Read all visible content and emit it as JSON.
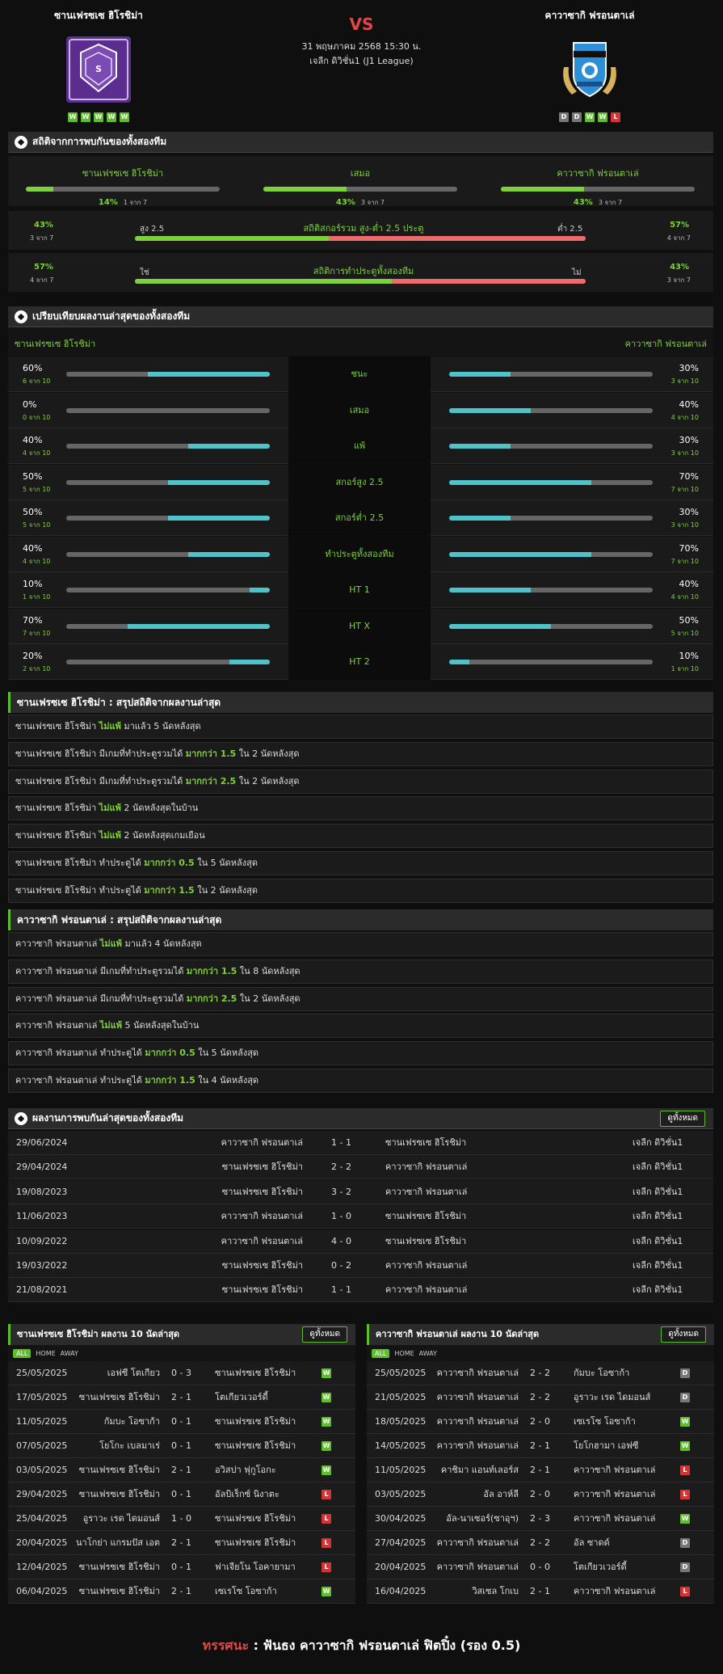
{
  "match": {
    "home": "ซานเฟรซเซ ฮิโรชิม่า",
    "away": "คาวาซากิ ฟรอนตาเล่",
    "vs": "VS",
    "date": "31 พฤษภาคม 2568 15:30 น.",
    "league": "เจลีก ดิวิชั่น1 (J1 League)",
    "home_form": [
      "W",
      "W",
      "W",
      "W",
      "W"
    ],
    "away_form": [
      "D",
      "D",
      "W",
      "W",
      "L"
    ],
    "colors": {
      "home_crest": "#5b2d8e",
      "away_crest": "#2d8fd5",
      "accent": "#7fd13b",
      "win": "#5cbf2a",
      "draw": "#777777",
      "loss": "#d83333"
    },
    "icons": {
      "home_crest": "sanfrecce-crest-icon",
      "away_crest": "frontale-crest-icon"
    }
  },
  "h2h_stats": {
    "title": "สถิติจากการพบกันของทั้งสองทีม",
    "items": [
      {
        "label": "ซานเฟรซเซ ฮิโรชิม่า",
        "pct": "14%",
        "of": "1 จาก 7",
        "fill": 0.14
      },
      {
        "label": "เสมอ",
        "pct": "43%",
        "of": "3 จาก 7",
        "fill": 0.43
      },
      {
        "label": "คาวาซากิ ฟรอนตาเล่",
        "pct": "43%",
        "of": "3 จาก 7",
        "fill": 0.43
      }
    ],
    "ou": {
      "label": "สถิติสกอร์รวม สูง-ต่ำ 2.5 ประตู",
      "left_pct": "43%",
      "left_of": "3 จาก 7",
      "left_word": "สูง 2.5",
      "right_word": "ต่ำ 2.5",
      "right_pct": "57%",
      "right_of": "4 จาก 7",
      "fill": 0.43
    },
    "btts": {
      "label": "สถิติการทำประตูทั้งสองทีม",
      "left_pct": "57%",
      "left_of": "4 จาก 7",
      "left_word": "ใช่",
      "right_word": "ไม่",
      "right_pct": "43%",
      "right_of": "3 จาก 7",
      "fill": 0.57
    }
  },
  "compare": {
    "title": "เปรียบเทียบผลงานล่าสุดของทั้งสองทีม",
    "home": "ซานเฟรซเซ ฮิโรชิม่า",
    "away": "คาวาซากิ ฟรอนตาเล่",
    "rows": [
      {
        "label": "ชนะ",
        "lp": "60%",
        "lo": "6 จาก 10",
        "lf": 0.6,
        "rp": "30%",
        "ro": "3 จาก 10",
        "rf": 0.3
      },
      {
        "label": "เสมอ",
        "lp": "0%",
        "lo": "0 จาก 10",
        "lf": 0,
        "rp": "40%",
        "ro": "4 จาก 10",
        "rf": 0.4
      },
      {
        "label": "แพ้",
        "lp": "40%",
        "lo": "4 จาก 10",
        "lf": 0.4,
        "rp": "30%",
        "ro": "3 จาก 10",
        "rf": 0.3
      },
      {
        "label": "สกอร์สูง 2.5",
        "lp": "50%",
        "lo": "5 จาก 10",
        "lf": 0.5,
        "rp": "70%",
        "ro": "7 จาก 10",
        "rf": 0.7
      },
      {
        "label": "สกอร์ต่ำ 2.5",
        "lp": "50%",
        "lo": "5 จาก 10",
        "lf": 0.5,
        "rp": "30%",
        "ro": "3 จาก 10",
        "rf": 0.3
      },
      {
        "label": "ทำประตูทั้งสองทีม",
        "lp": "40%",
        "lo": "4 จาก 10",
        "lf": 0.4,
        "rp": "70%",
        "ro": "7 จาก 10",
        "rf": 0.7
      },
      {
        "label": "HT 1",
        "lp": "10%",
        "lo": "1 จาก 10",
        "lf": 0.1,
        "rp": "40%",
        "ro": "4 จาก 10",
        "rf": 0.4
      },
      {
        "label": "HT X",
        "lp": "70%",
        "lo": "7 จาก 10",
        "lf": 0.7,
        "rp": "50%",
        "ro": "5 จาก 10",
        "rf": 0.5
      },
      {
        "label": "HT 2",
        "lp": "20%",
        "lo": "2 จาก 10",
        "lf": 0.2,
        "rp": "10%",
        "ro": "1 จาก 10",
        "rf": 0.1
      }
    ]
  },
  "home_summary": {
    "title": "ซานเฟรซเซ ฮิโรชิม่า : สรุปสถิติจากผลงานล่าสุด",
    "rows": [
      [
        "ซานเฟรซเซ ฮิโรชิม่า ",
        "ไม่แพ้",
        " มาแล้ว 5 นัดหลังสุด"
      ],
      [
        "ซานเฟรซเซ ฮิโรชิม่า มีเกมที่ทำประตูรวมได้ ",
        "มากกว่า 1.5",
        " ใน 2 นัดหลังสุด"
      ],
      [
        "ซานเฟรซเซ ฮิโรชิม่า มีเกมที่ทำประตูรวมได้ ",
        "มากกว่า 2.5",
        " ใน 2 นัดหลังสุด"
      ],
      [
        "ซานเฟรซเซ ฮิโรชิม่า ",
        "ไม่แพ้",
        " 2 นัดหลังสุดในบ้าน"
      ],
      [
        "ซานเฟรซเซ ฮิโรชิม่า ",
        "ไม่แพ้",
        " 2 นัดหลังสุดเกมเยือน"
      ],
      [
        "ซานเฟรซเซ ฮิโรชิม่า ทำประตูได้ ",
        "มากกว่า 0.5",
        " ใน 5 นัดหลังสุด"
      ],
      [
        "ซานเฟรซเซ ฮิโรชิม่า ทำประตูได้ ",
        "มากกว่า 1.5",
        " ใน 2 นัดหลังสุด"
      ]
    ]
  },
  "away_summary": {
    "title": "คาวาซากิ ฟรอนตาเล่ : สรุปสถิติจากผลงานล่าสุด",
    "rows": [
      [
        "คาวาซากิ ฟรอนตาเล่ ",
        "ไม่แพ้",
        " มาแล้ว 4 นัดหลังสุด"
      ],
      [
        "คาวาซากิ ฟรอนตาเล่ มีเกมที่ทำประตูรวมได้ ",
        "มากกว่า 1.5",
        " ใน 8 นัดหลังสุด"
      ],
      [
        "คาวาซากิ ฟรอนตาเล่ มีเกมที่ทำประตูรวมได้ ",
        "มากกว่า 2.5",
        " ใน 2 นัดหลังสุด"
      ],
      [
        "คาวาซากิ ฟรอนตาเล่ ",
        "ไม่แพ้",
        " 5 นัดหลังสุดในบ้าน"
      ],
      [
        "คาวาซากิ ฟรอนตาเล่ ทำประตูได้ ",
        "มากกว่า 0.5",
        " ใน 5 นัดหลังสุด"
      ],
      [
        "คาวาซากิ ฟรอนตาเล่ ทำประตูได้ ",
        "มากกว่า 1.5",
        " ใน 4 นัดหลังสุด"
      ]
    ]
  },
  "h2h_results": {
    "title": "ผลงานการพบกันล่าสุดของทั้งสองทีม",
    "button": "ดูทั้งหมด",
    "rows": [
      [
        "29/06/2024",
        "คาวาซากิ ฟรอนตาเล่",
        "1 - 1",
        "ซานเฟรซเซ ฮิโรชิม่า",
        "เจลีก ดิวิชั่น1"
      ],
      [
        "29/04/2024",
        "ซานเฟรซเซ ฮิโรชิม่า",
        "2 - 2",
        "คาวาซากิ ฟรอนตาเล่",
        "เจลีก ดิวิชั่น1"
      ],
      [
        "19/08/2023",
        "ซานเฟรซเซ ฮิโรชิม่า",
        "3 - 2",
        "คาวาซากิ ฟรอนตาเล่",
        "เจลีก ดิวิชั่น1"
      ],
      [
        "11/06/2023",
        "คาวาซากิ ฟรอนตาเล่",
        "1 - 0",
        "ซานเฟรซเซ ฮิโรชิม่า",
        "เจลีก ดิวิชั่น1"
      ],
      [
        "10/09/2022",
        "คาวาซากิ ฟรอนตาเล่",
        "4 - 0",
        "ซานเฟรซเซ ฮิโรชิม่า",
        "เจลีก ดิวิชั่น1"
      ],
      [
        "19/03/2022",
        "ซานเฟรซเซ ฮิโรชิม่า",
        "0 - 2",
        "คาวาซากิ ฟรอนตาเล่",
        "เจลีก ดิวิชั่น1"
      ],
      [
        "21/08/2021",
        "ซานเฟรซเซ ฮิโรชิม่า",
        "1 - 1",
        "คาวาซากิ ฟรอนตาเล่",
        "เจลีก ดิวิชั่น1"
      ]
    ]
  },
  "last10_home": {
    "title": "ซานเฟรซเซ ฮิโรชิม่า ผลงาน 10 นัดล่าสุด",
    "button": "ดูทั้งหมด",
    "tabs": [
      "ALL",
      "HOME",
      "AWAY"
    ],
    "rows": [
      [
        "25/05/2025",
        "เอฟซี โตเกียว",
        "0 - 3",
        "ซานเฟรซเซ ฮิโรชิม่า",
        "W"
      ],
      [
        "17/05/2025",
        "ซานเฟรซเซ ฮิโรชิม่า",
        "2 - 1",
        "โตเกียวเวอร์ดี้",
        "W"
      ],
      [
        "11/05/2025",
        "กัมบะ โอซาก้า",
        "0 - 1",
        "ซานเฟรซเซ ฮิโรชิม่า",
        "W"
      ],
      [
        "07/05/2025",
        "โยโกะ เบลมาเร่",
        "0 - 1",
        "ซานเฟรซเซ ฮิโรชิม่า",
        "W"
      ],
      [
        "03/05/2025",
        "ซานเฟรซเซ ฮิโรชิม่า",
        "2 - 1",
        "อวิสปา ฟุกูโอกะ",
        "W"
      ],
      [
        "29/04/2025",
        "ซานเฟรซเซ ฮิโรชิม่า",
        "0 - 1",
        "อัลบิเร็กซ์ นิงาตะ",
        "L"
      ],
      [
        "25/04/2025",
        "อูราวะ เรด ไดมอนส์",
        "1 - 0",
        "ซานเฟรซเซ ฮิโรชิม่า",
        "L"
      ],
      [
        "20/04/2025",
        "นาโกย่า แกรมปัส เอต",
        "2 - 1",
        "ซานเฟรซเซ ฮิโรชิม่า",
        "L"
      ],
      [
        "12/04/2025",
        "ซานเฟรซเซ ฮิโรชิม่า",
        "0 - 1",
        "ฟาเจียโน โอคายามา",
        "L"
      ],
      [
        "06/04/2025",
        "ซานเฟรซเซ ฮิโรชิม่า",
        "2 - 1",
        "เซเรโซ โอซาก้า",
        "W"
      ]
    ]
  },
  "last10_away": {
    "title": "คาวาซากิ ฟรอนตาเล่ ผลงาน 10 นัดล่าสุด",
    "button": "ดูทั้งหมด",
    "tabs": [
      "ALL",
      "HOME",
      "AWAY"
    ],
    "rows": [
      [
        "25/05/2025",
        "คาวาซากิ ฟรอนตาเล่",
        "2 - 2",
        "กัมบะ โอซาก้า",
        "D"
      ],
      [
        "21/05/2025",
        "คาวาซากิ ฟรอนตาเล่",
        "2 - 2",
        "อูราวะ เรด ไดมอนส์",
        "D"
      ],
      [
        "18/05/2025",
        "คาวาซากิ ฟรอนตาเล่",
        "2 - 0",
        "เซเรโซ โอซาก้า",
        "W"
      ],
      [
        "14/05/2025",
        "คาวาซากิ ฟรอนตาเล่",
        "2 - 1",
        "โยโกฮามา เอฟซี",
        "W"
      ],
      [
        "11/05/2025",
        "คาชิมา แอนท์เลอร์ส",
        "2 - 1",
        "คาวาซากิ ฟรอนตาเล่",
        "L"
      ],
      [
        "03/05/2025",
        "อัล อาห์ลี",
        "2 - 0",
        "คาวาซากิ ฟรอนตาเล่",
        "L"
      ],
      [
        "30/04/2025",
        "อัล-นาเซอร์(ซาอุฯ)",
        "2 - 3",
        "คาวาซากิ ฟรอนตาเล่",
        "W"
      ],
      [
        "27/04/2025",
        "คาวาซากิ ฟรอนตาเล่",
        "2 - 2",
        "อัล ซาดด์",
        "D"
      ],
      [
        "20/04/2025",
        "คาวาซากิ ฟรอนตาเล่",
        "0 - 0",
        "โตเกียวเวอร์ดี้",
        "D"
      ],
      [
        "16/04/2025",
        "วิสเซล โกเบ",
        "2 - 1",
        "คาวาซากิ ฟรอนตาเล่",
        "L"
      ]
    ]
  },
  "verdict": {
    "label": "ทรรศนะ",
    "sep": " : ",
    "text": "ฟันธง คาวาซากิ ฟรอนตาเล่ ฟิตปิ๋ง (รอง 0.5)"
  }
}
